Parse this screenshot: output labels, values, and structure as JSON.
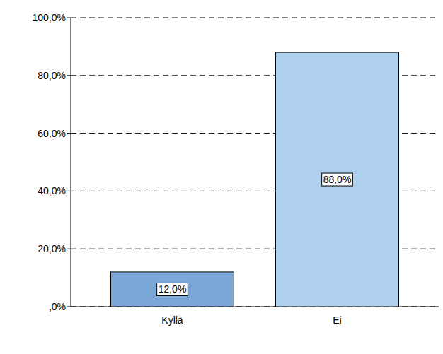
{
  "chart_data": {
    "type": "bar",
    "categories": [
      "Kyllä",
      "Ei"
    ],
    "values": [
      12,
      88
    ],
    "value_labels": [
      "12,0%",
      "88,0%"
    ],
    "colors": [
      "#7ba7d7",
      "#aed0ee"
    ],
    "ylim": [
      0,
      100
    ],
    "yticks": [
      {
        "value": 0,
        "label": ",0%"
      },
      {
        "value": 20,
        "label": "20,0%"
      },
      {
        "value": 40,
        "label": "40,0%"
      },
      {
        "value": 60,
        "label": "60,0%"
      },
      {
        "value": 80,
        "label": "80,0%"
      },
      {
        "value": 100,
        "label": "100,0%"
      }
    ],
    "grid": true,
    "data_labels": true
  }
}
